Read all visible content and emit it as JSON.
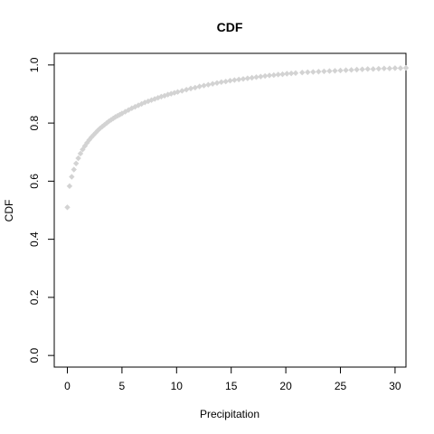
{
  "chart_data": {
    "type": "scatter",
    "title": "CDF",
    "xlabel": "Precipitation",
    "ylabel": "CDF",
    "xlim": [
      -1.2,
      31
    ],
    "ylim": [
      -0.04,
      1.04
    ],
    "x_ticks": [
      0,
      5,
      10,
      15,
      20,
      25,
      30
    ],
    "y_ticks": [
      0.0,
      0.2,
      0.4,
      0.6,
      0.8,
      1.0
    ],
    "x_tick_labels": [
      "0",
      "5",
      "10",
      "15",
      "20",
      "25",
      "30"
    ],
    "y_tick_labels": [
      "0.0",
      "0.2",
      "0.4",
      "0.6",
      "0.8",
      "1.0"
    ],
    "point_color": "#d3d3d3",
    "grid": false,
    "legend": "none",
    "series": [
      {
        "x": [
          0,
          0.2,
          0.4,
          0.6,
          0.8,
          1.0,
          1.2,
          1.4,
          1.6,
          1.8,
          2.0,
          2.2,
          2.4,
          2.6,
          2.8,
          3.0,
          3.2,
          3.4,
          3.6,
          3.8,
          4.0,
          4.2,
          4.4,
          4.6,
          4.8,
          5.0,
          5.3,
          5.6,
          5.9,
          6.2,
          6.5,
          6.8,
          7.1,
          7.4,
          7.7,
          8.0,
          8.3,
          8.6,
          8.9,
          9.2,
          9.5,
          9.8,
          10.1,
          10.5,
          10.9,
          11.3,
          11.7,
          12.1,
          12.5,
          12.9,
          13.3,
          13.7,
          14.1,
          14.5,
          14.9,
          15.3,
          15.7,
          16.1,
          16.5,
          16.9,
          17.3,
          17.7,
          18.1,
          18.5,
          18.9,
          19.3,
          19.7,
          20.1,
          20.5,
          20.9,
          21.5,
          22.0,
          22.5,
          23.0,
          23.5,
          24.0,
          24.5,
          25.0,
          25.5,
          26.0,
          26.5,
          27.0,
          27.5,
          28.0,
          28.5,
          29.0,
          29.5,
          30.0,
          30.5,
          31.0
        ],
        "y": [
          0.51,
          0.583,
          0.615,
          0.64,
          0.661,
          0.679,
          0.695,
          0.709,
          0.721,
          0.732,
          0.742,
          0.751,
          0.759,
          0.767,
          0.775,
          0.782,
          0.788,
          0.794,
          0.8,
          0.806,
          0.811,
          0.816,
          0.821,
          0.825,
          0.829,
          0.833,
          0.839,
          0.845,
          0.851,
          0.856,
          0.861,
          0.866,
          0.871,
          0.875,
          0.879,
          0.883,
          0.887,
          0.891,
          0.894,
          0.898,
          0.901,
          0.904,
          0.907,
          0.911,
          0.915,
          0.919,
          0.922,
          0.926,
          0.929,
          0.932,
          0.935,
          0.938,
          0.941,
          0.943,
          0.946,
          0.948,
          0.95,
          0.952,
          0.954,
          0.956,
          0.958,
          0.96,
          0.962,
          0.964,
          0.965,
          0.967,
          0.968,
          0.97,
          0.971,
          0.972,
          0.974,
          0.975,
          0.976,
          0.977,
          0.978,
          0.979,
          0.98,
          0.981,
          0.982,
          0.983,
          0.984,
          0.985,
          0.986,
          0.986,
          0.987,
          0.988,
          0.988,
          0.989,
          0.989,
          0.99
        ]
      }
    ]
  }
}
